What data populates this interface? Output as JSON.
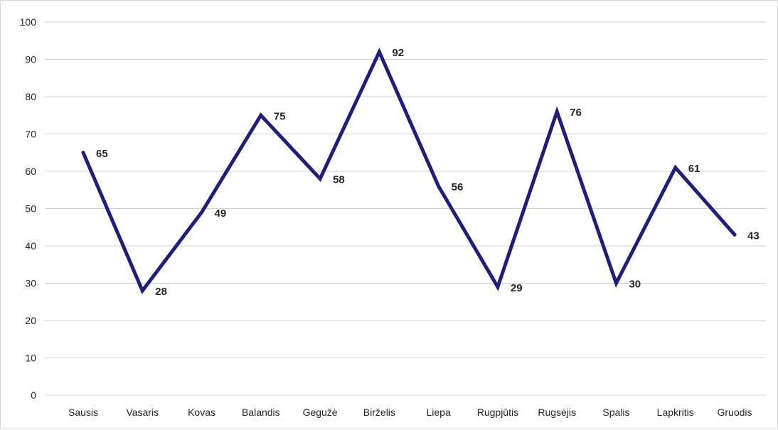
{
  "chart_data": {
    "type": "line",
    "title": "",
    "xlabel": "",
    "ylabel": "",
    "categories": [
      "Sausis",
      "Vasaris",
      "Kovas",
      "Balandis",
      "Gegužė",
      "Birželis",
      "Liepa",
      "Rugpjūtis",
      "Rugsėjis",
      "Spalis",
      "Lapkritis",
      "Gruodis"
    ],
    "series": [
      {
        "values": [
          65,
          28,
          49,
          75,
          58,
          92,
          56,
          29,
          76,
          30,
          61,
          43
        ]
      }
    ],
    "ylim": [
      0,
      100
    ],
    "yticks": [
      0,
      10,
      20,
      30,
      40,
      50,
      60,
      70,
      80,
      90,
      100
    ],
    "ytick_labels": [
      "0",
      "10",
      "20",
      "30",
      "40",
      "50",
      "60",
      "70",
      "80",
      "90",
      "100"
    ],
    "data_labels": [
      "65",
      "28",
      "49",
      "75",
      "58",
      "92",
      "56",
      "29",
      "76",
      "30",
      "61",
      "43"
    ],
    "grid": true,
    "legend": "none",
    "colors": {
      "line": "#1f1f7a"
    }
  }
}
